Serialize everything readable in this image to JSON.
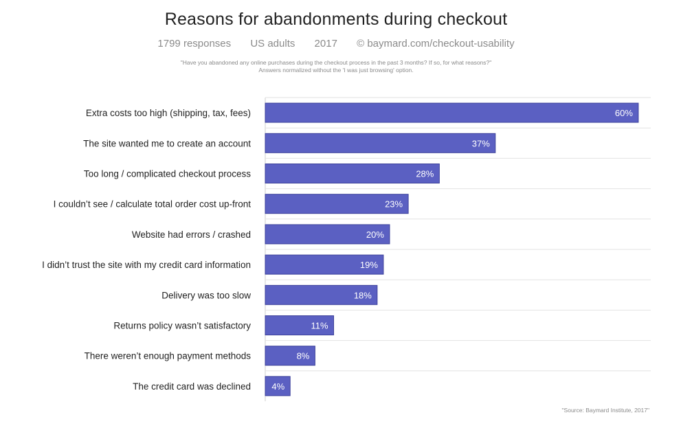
{
  "header": {
    "title": "Reasons for abandonments during checkout",
    "subtitle_responses": "1799 responses",
    "subtitle_population": "US adults",
    "subtitle_year": "2017",
    "subtitle_copyright": "© baymard.com/checkout-usability",
    "question_line1": "\"Have you abandoned any online purchases during the checkout process in the past 3 months? If so, for what reasons?\"",
    "question_line2": "Answers normalized without the 'I was just browsing' option."
  },
  "footer": {
    "source": "\"Source: Baymard Institute, 2017\""
  },
  "chart_data": {
    "type": "bar",
    "orientation": "horizontal",
    "title": "Reasons for abandonments during checkout",
    "categories": [
      "Extra costs too high (shipping, tax, fees)",
      "The site wanted me to create an account",
      "Too long / complicated checkout process",
      "I couldn’t see / calculate total order cost up-front",
      "Website had errors / crashed",
      "I didn’t trust the site with my credit card information",
      "Delivery was too slow",
      "Returns policy wasn’t satisfactory",
      "There weren’t enough payment methods",
      "The credit card was declined"
    ],
    "values": [
      60,
      37,
      28,
      23,
      20,
      19,
      18,
      11,
      8,
      4
    ],
    "value_labels": [
      "60%",
      "37%",
      "28%",
      "23%",
      "20%",
      "19%",
      "18%",
      "11%",
      "8%",
      "4%"
    ],
    "xlim": [
      0,
      62
    ],
    "grid": "horizontal row separators",
    "bar_color": "#5b60c2",
    "bar_border_color": "#3d419a"
  }
}
